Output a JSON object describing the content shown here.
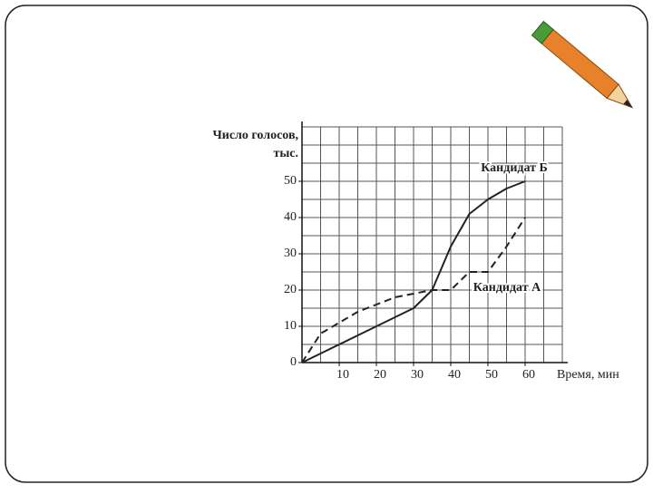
{
  "chart_data": {
    "type": "line",
    "y_label": [
      "Число голосов,",
      "тыс."
    ],
    "x_label": "Время, мин",
    "x": [
      0,
      5,
      10,
      15,
      20,
      25,
      30,
      35,
      40,
      45,
      50,
      55,
      60
    ],
    "series": [
      {
        "name": "Кандидат Б",
        "color": "#222222",
        "dash": false,
        "values": [
          0,
          2.5,
          5,
          7.5,
          10,
          12.5,
          15,
          20,
          32,
          41,
          45,
          48,
          50
        ]
      },
      {
        "name": "Кандидат А",
        "color": "#222222",
        "dash": true,
        "values": [
          0,
          8,
          11,
          14,
          16,
          18,
          19,
          20,
          20,
          25,
          25,
          32,
          40
        ]
      }
    ],
    "xlim": [
      0,
      70
    ],
    "ylim": [
      0,
      65
    ],
    "xticks": [
      10,
      20,
      30,
      40,
      50,
      60
    ],
    "yticks": [
      0,
      10,
      20,
      30,
      40,
      50
    ],
    "xgrid": [
      0,
      5,
      10,
      15,
      20,
      25,
      30,
      35,
      40,
      45,
      50,
      55,
      60,
      65,
      70
    ],
    "ygrid": [
      0,
      5,
      10,
      15,
      20,
      25,
      30,
      35,
      40,
      45,
      50,
      55,
      60,
      65
    ],
    "grid": true
  }
}
